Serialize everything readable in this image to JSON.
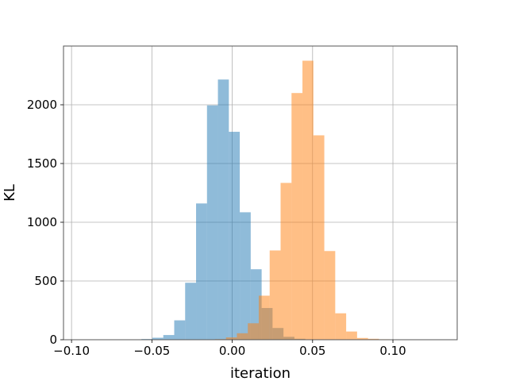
{
  "chart_data": {
    "type": "bar",
    "subtype": "overlapping-histogram",
    "title": "",
    "xlabel": "iteration",
    "ylabel": "KL",
    "xlim": [
      -0.105,
      0.14
    ],
    "ylim": [
      0,
      2500
    ],
    "xticks": [
      -0.1,
      -0.05,
      0.0,
      0.05,
      0.1
    ],
    "xtick_labels": [
      "−0.10",
      "−0.05",
      "0.00",
      "0.05",
      "0.10"
    ],
    "yticks": [
      0,
      500,
      1000,
      1500,
      2000
    ],
    "ytick_labels": [
      "0",
      "500",
      "1000",
      "1500",
      "2000"
    ],
    "grid": true,
    "series": [
      {
        "color": "#1f77b4",
        "opacity": 0.5,
        "bin_edges": [
          -0.0905,
          -0.0837,
          -0.0769,
          -0.0701,
          -0.0633,
          -0.0565,
          -0.0497,
          -0.0429,
          -0.0361,
          -0.0293,
          -0.0225,
          -0.0157,
          -0.0089,
          -0.0021,
          0.0047,
          0.0115,
          0.0183,
          0.0251,
          0.0319,
          0.0387,
          0.0455,
          0.0523,
          0.0591,
          0.0659,
          0.0727
        ],
        "counts": [
          1,
          0,
          1,
          0,
          2,
          6,
          17,
          40,
          165,
          485,
          1160,
          1995,
          2215,
          1770,
          1085,
          600,
          270,
          100,
          25,
          8,
          3,
          1,
          0,
          1
        ]
      },
      {
        "color": "#ff7f0e",
        "opacity": 0.5,
        "bin_edges": [
          -0.0107,
          -0.0039,
          0.0029,
          0.0097,
          0.0165,
          0.0233,
          0.0301,
          0.0369,
          0.0437,
          0.0505,
          0.0573,
          0.0641,
          0.0709,
          0.0777,
          0.0845,
          0.0913,
          0.0981,
          0.1049,
          0.1117,
          0.1185,
          0.1253,
          0.1321
        ],
        "counts": [
          5,
          20,
          55,
          140,
          375,
          760,
          1335,
          2100,
          2375,
          1740,
          755,
          225,
          70,
          15,
          8,
          4,
          2,
          1,
          0,
          1,
          0
        ]
      }
    ]
  }
}
